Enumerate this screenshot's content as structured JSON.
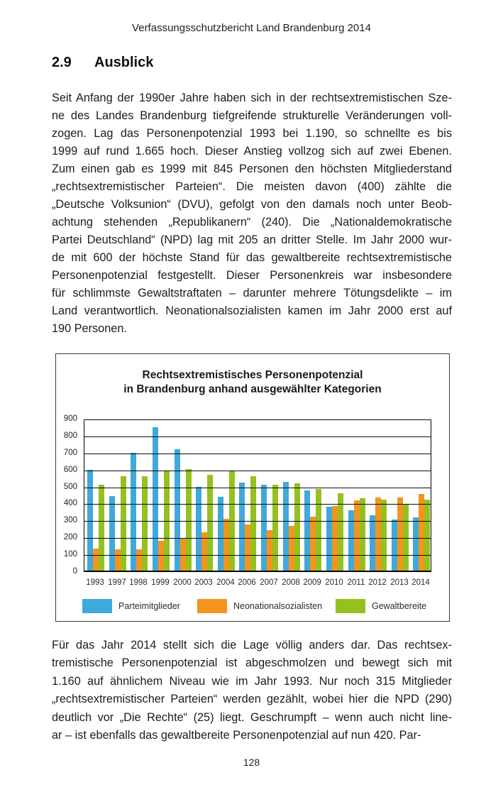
{
  "page": {
    "running_header": "Verfassungsschutzbericht Land Brandenburg 2014",
    "section_number": "2.9",
    "section_title": "Ausblick",
    "page_number": "128"
  },
  "paragraphs": [
    {
      "lines": [
        "Seit Anfang der 1990er Jahre haben sich in der rechtsextremistischen Sze-",
        "ne des Landes Brandenburg tiefgreifende strukturelle Veränderungen voll-",
        "zogen. Lag das Personenpotenzial 1993 bei 1.190, so schnellte es bis",
        "1999 auf rund 1.665 hoch. Dieser Anstieg vollzog sich auf zwei Ebenen.",
        "Zum einen gab es 1999 mit 845 Personen den höchsten Mitgliederstand",
        "„rechtsextremistischer Parteien“. Die meisten davon (400) zählte die",
        "„Deutsche Volksunion“ (DVU), gefolgt von den damals noch unter Beob-",
        "achtung stehenden „Republikanern“ (240). Die „Nationaldemokratische",
        "Partei Deutschland“ (NPD) lag mit 205 an dritter Stelle. Im Jahr 2000 wur-",
        "de mit 600 der höchste Stand für das gewaltbereite rechtsextremistische",
        "Personenpotenzial festgestellt. Dieser Personenkreis war insbesondere",
        "für schlimmste Gewaltstraftaten – darunter mehrere Tötungsdelikte – im",
        "Land verantwortlich. Neonationalsozialisten kamen im Jahr 2000 erst auf",
        "190 Personen."
      ]
    },
    {
      "lines": [
        "Für das Jahr 2014 stellt sich die Lage völlig anders dar. Das rechtsex-",
        "tremistische Personenpotenzial ist abgeschmolzen und bewegt sich mit",
        "1.160 auf ähnlichem Niveau wie im Jahr 1993. Nur noch 315 Mitglieder",
        "„rechtsextremistischer Parteien“ werden gezählt, wobei hier die NPD (290)",
        "deutlich vor „Die Rechte“ (25) liegt. Geschrumpft – wenn auch nicht line-",
        "ar – ist ebenfalls das gewaltbereite Personenpotenzial auf nun 420. Par-"
      ]
    }
  ],
  "chart_data": {
    "type": "bar",
    "title_lines": [
      "Rechtsextremistisches Personenpotenzial",
      "in Brandenburg anhand ausgewählter Kategorien"
    ],
    "categories": [
      "1993",
      "1997",
      "1998",
      "1999",
      "2000",
      "2003",
      "2004",
      "2006",
      "2007",
      "2008",
      "2009",
      "2010",
      "2011",
      "2012",
      "2013",
      "2014"
    ],
    "series": [
      {
        "name": "Parteimitglieder",
        "color": "#3FA9DC",
        "values": [
          595,
          440,
          695,
          845,
          715,
          495,
          435,
          520,
          505,
          525,
          475,
          375,
          355,
          325,
          300,
          315
        ]
      },
      {
        "name": "Neonationalsozialisten",
        "color": "#F5941D",
        "values": [
          130,
          125,
          125,
          175,
          190,
          225,
          305,
          270,
          240,
          265,
          320,
          380,
          415,
          430,
          430,
          450
        ]
      },
      {
        "name": "Gewaltbereite",
        "color": "#95C11F",
        "values": [
          505,
          555,
          555,
          585,
          600,
          565,
          585,
          555,
          505,
          515,
          480,
          455,
          425,
          420,
          395,
          420
        ]
      }
    ],
    "ylim": [
      0,
      900
    ],
    "yticks": [
      0,
      100,
      200,
      300,
      400,
      500,
      600,
      700,
      800,
      900
    ],
    "grid": true,
    "legend_position": "bottom"
  }
}
